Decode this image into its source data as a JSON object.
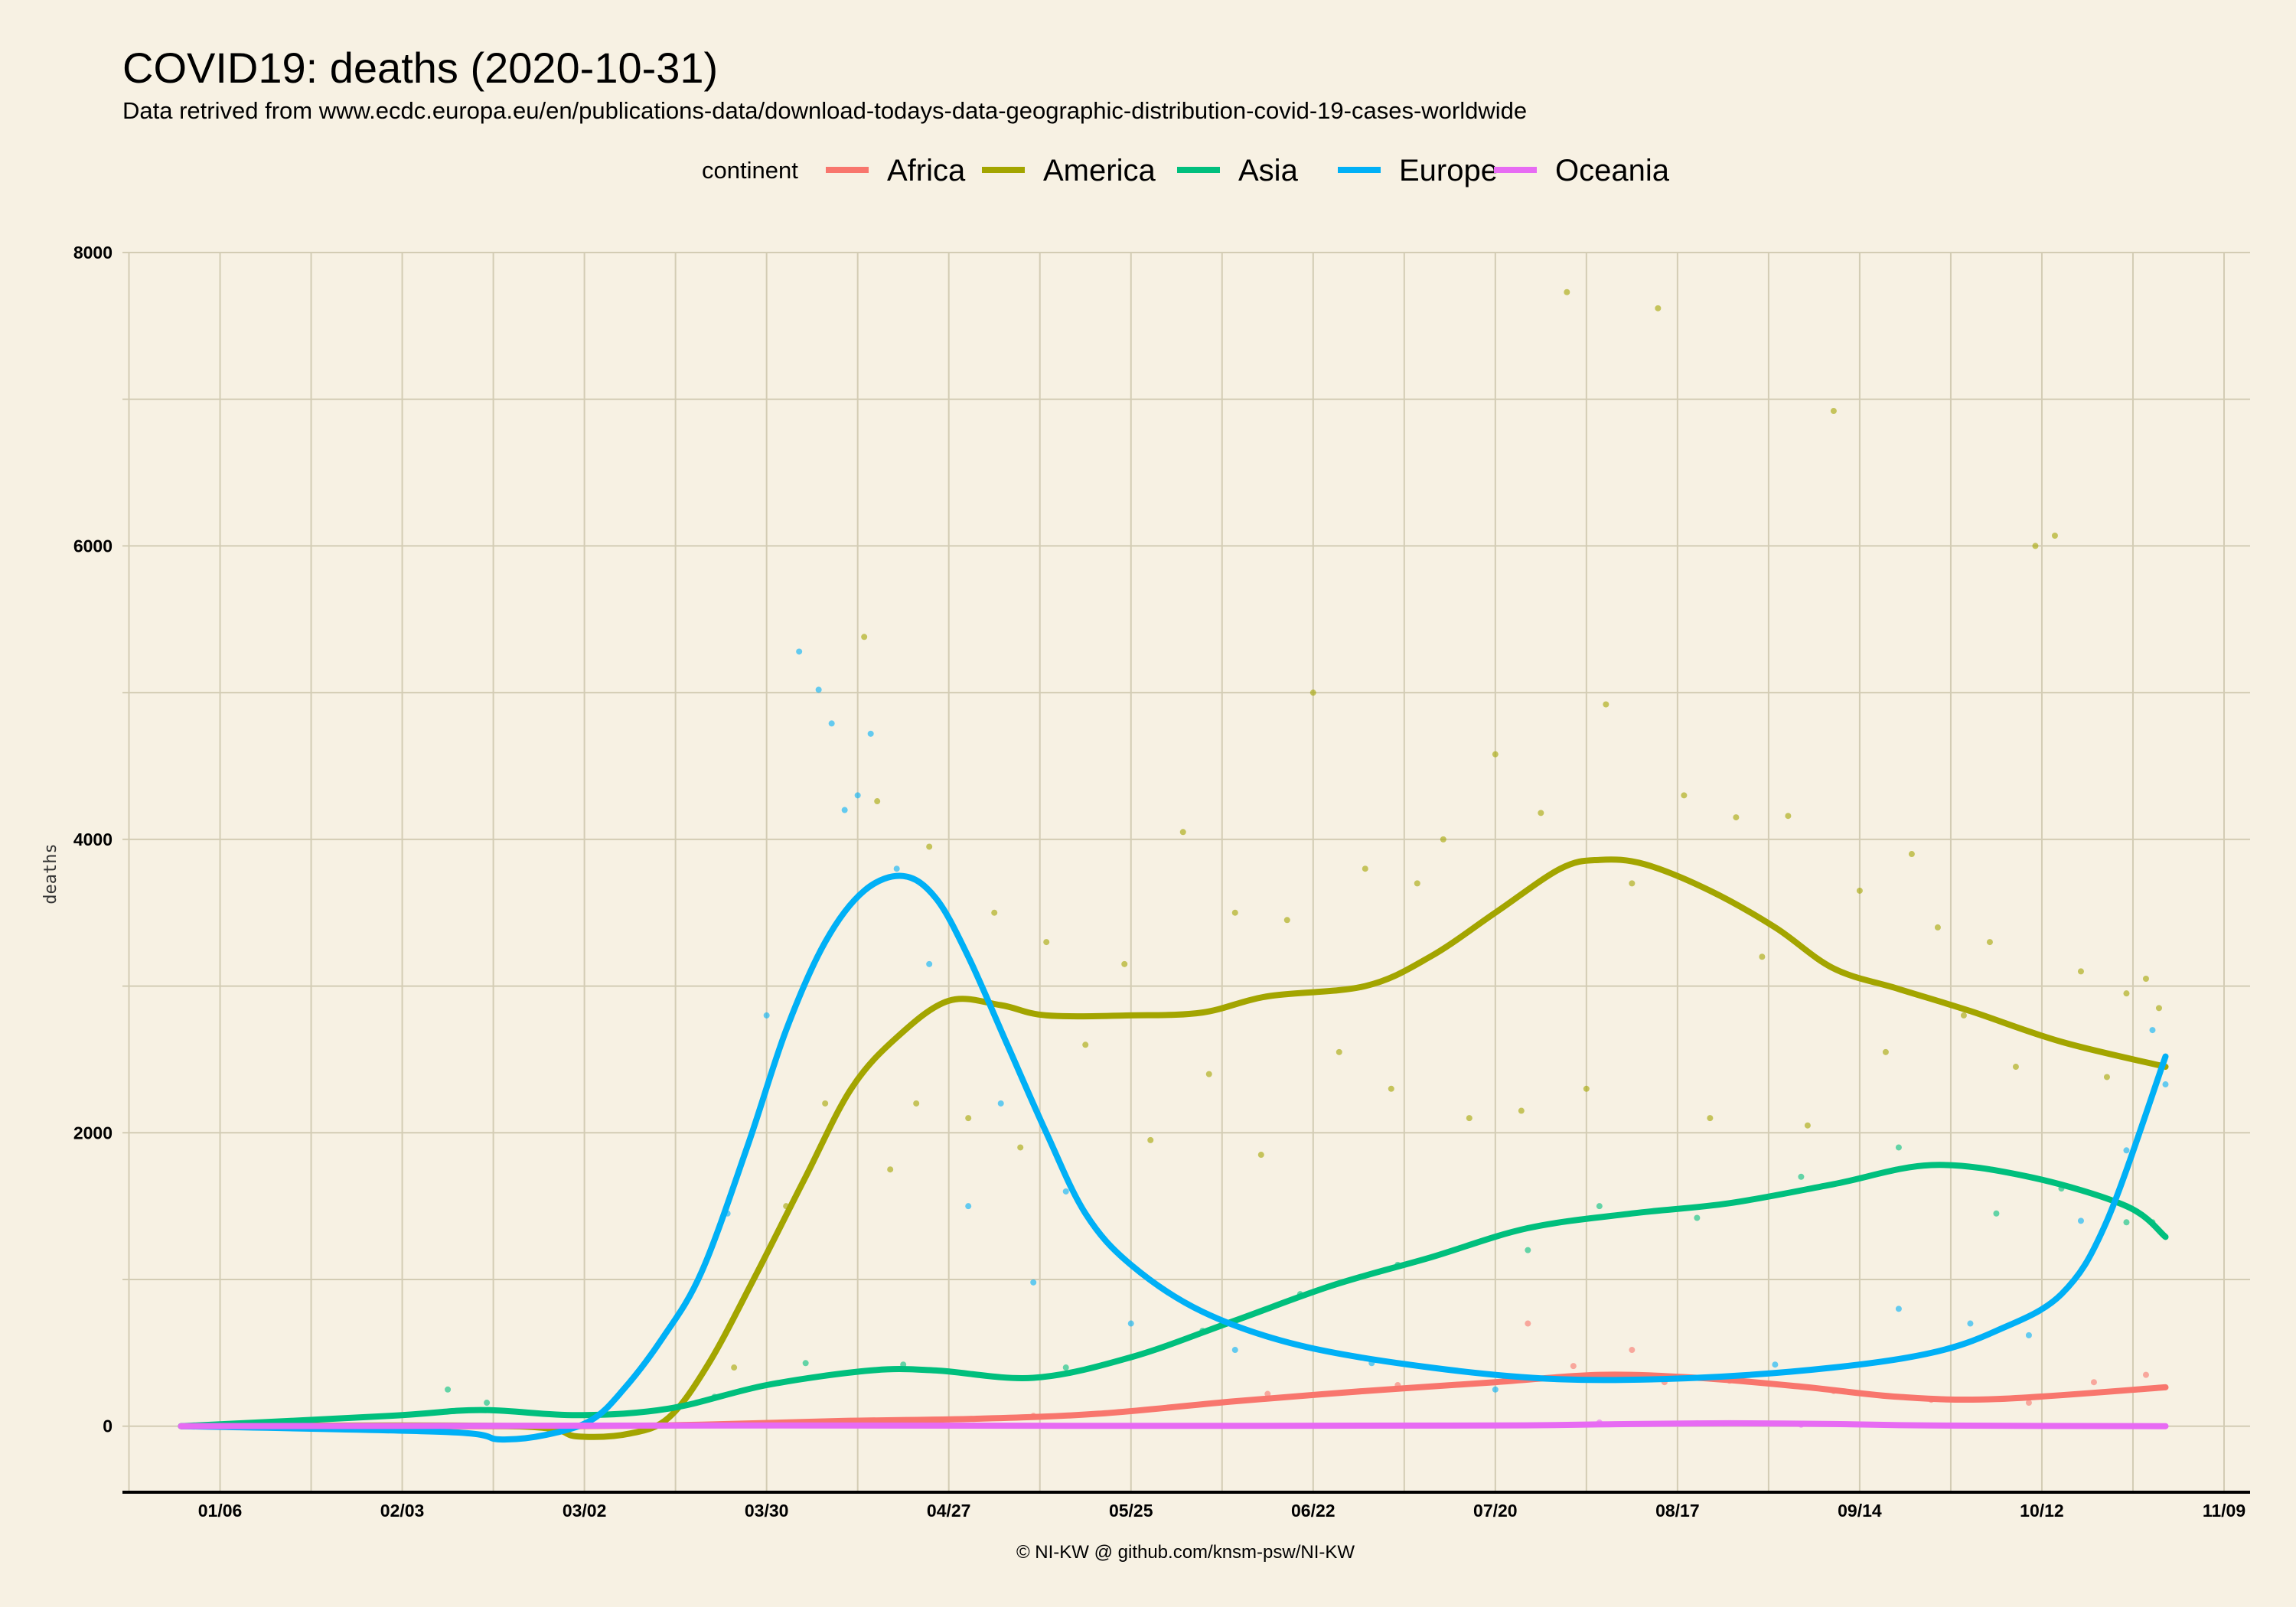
{
  "chart_data": {
    "type": "line",
    "title": "COVID19: deaths (2020-10-31)",
    "subtitle": "Data retrived from www.ecdc.europa.eu/en/publications-data/download-todays-data-geographic-distribution-covid-19-cases-worldwide",
    "caption": "© NI-KW @ github.com/knsm-psw/NI-KW",
    "ylabel": "deaths",
    "xlabel": "",
    "legend_title": "continent",
    "legend_position": "top",
    "grid": true,
    "x_type": "date",
    "x_range": [
      "2019-12-22",
      "2020-11-13"
    ],
    "ylim": [
      -450,
      8000
    ],
    "y_ticks": [
      0,
      2000,
      4000,
      6000,
      8000
    ],
    "y_tick_labels": [
      "0",
      "2000",
      "4000",
      "6000",
      "8000"
    ],
    "x_ticks": [
      "2020-01-06",
      "2020-02-03",
      "2020-03-02",
      "2020-03-30",
      "2020-04-27",
      "2020-05-25",
      "2020-06-22",
      "2020-07-20",
      "2020-08-17",
      "2020-09-14",
      "2020-10-12",
      "2020-11-09"
    ],
    "x_tick_labels": [
      "01/06",
      "02/03",
      "03/02",
      "03/30",
      "04/27",
      "05/25",
      "06/22",
      "07/20",
      "08/17",
      "09/14",
      "10/12",
      "11/09"
    ],
    "series": [
      {
        "name": "Africa",
        "color": "#f8766d",
        "smooth": [
          [
            "2019-12-31",
            0
          ],
          [
            "2020-02-01",
            0
          ],
          [
            "2020-03-01",
            0
          ],
          [
            "2020-03-20",
            10
          ],
          [
            "2020-04-10",
            35
          ],
          [
            "2020-05-01",
            50
          ],
          [
            "2020-05-20",
            85
          ],
          [
            "2020-06-10",
            170
          ],
          [
            "2020-06-30",
            240
          ],
          [
            "2020-07-20",
            300
          ],
          [
            "2020-08-05",
            350
          ],
          [
            "2020-08-20",
            330
          ],
          [
            "2020-09-05",
            270
          ],
          [
            "2020-09-20",
            200
          ],
          [
            "2020-10-05",
            185
          ],
          [
            "2020-10-31",
            265
          ]
        ],
        "points": [
          [
            "2020-04-05",
            25
          ],
          [
            "2020-05-10",
            70
          ],
          [
            "2020-06-15",
            220
          ],
          [
            "2020-07-05",
            280
          ],
          [
            "2020-07-25",
            700
          ],
          [
            "2020-08-01",
            410
          ],
          [
            "2020-08-10",
            520
          ],
          [
            "2020-08-15",
            300
          ],
          [
            "2020-08-25",
            310
          ],
          [
            "2020-09-10",
            240
          ],
          [
            "2020-09-25",
            180
          ],
          [
            "2020-10-10",
            160
          ],
          [
            "2020-10-20",
            300
          ],
          [
            "2020-10-28",
            350
          ]
        ]
      },
      {
        "name": "America",
        "color": "#a3a500",
        "smooth": [
          [
            "2019-12-31",
            0
          ],
          [
            "2020-02-20",
            0
          ],
          [
            "2020-03-01",
            -70
          ],
          [
            "2020-03-09",
            -50
          ],
          [
            "2020-03-15",
            60
          ],
          [
            "2020-03-21",
            420
          ],
          [
            "2020-03-28",
            1000
          ],
          [
            "2020-04-05",
            1700
          ],
          [
            "2020-04-12",
            2300
          ],
          [
            "2020-04-19",
            2650
          ],
          [
            "2020-04-27",
            2900
          ],
          [
            "2020-05-05",
            2870
          ],
          [
            "2020-05-12",
            2800
          ],
          [
            "2020-05-25",
            2800
          ],
          [
            "2020-06-05",
            2820
          ],
          [
            "2020-06-15",
            2930
          ],
          [
            "2020-06-30",
            3000
          ],
          [
            "2020-07-10",
            3200
          ],
          [
            "2020-07-20",
            3500
          ],
          [
            "2020-07-30",
            3800
          ],
          [
            "2020-08-05",
            3860
          ],
          [
            "2020-08-12",
            3830
          ],
          [
            "2020-08-22",
            3650
          ],
          [
            "2020-09-01",
            3400
          ],
          [
            "2020-09-10",
            3120
          ],
          [
            "2020-09-20",
            2980
          ],
          [
            "2020-10-01",
            2830
          ],
          [
            "2020-10-15",
            2620
          ],
          [
            "2020-10-31",
            2450
          ]
        ],
        "points": [
          [
            "2020-03-25",
            400
          ],
          [
            "2020-04-02",
            1500
          ],
          [
            "2020-04-08",
            2200
          ],
          [
            "2020-04-14",
            5380
          ],
          [
            "2020-04-16",
            4260
          ],
          [
            "2020-04-18",
            1750
          ],
          [
            "2020-04-22",
            2200
          ],
          [
            "2020-04-24",
            3950
          ],
          [
            "2020-04-30",
            2100
          ],
          [
            "2020-05-04",
            3500
          ],
          [
            "2020-05-08",
            1900
          ],
          [
            "2020-05-12",
            3300
          ],
          [
            "2020-05-18",
            2600
          ],
          [
            "2020-05-24",
            3150
          ],
          [
            "2020-05-28",
            1950
          ],
          [
            "2020-06-02",
            4050
          ],
          [
            "2020-06-06",
            2400
          ],
          [
            "2020-06-10",
            3500
          ],
          [
            "2020-06-14",
            1850
          ],
          [
            "2020-06-18",
            3450
          ],
          [
            "2020-06-22",
            5000
          ],
          [
            "2020-06-26",
            2550
          ],
          [
            "2020-06-30",
            3800
          ],
          [
            "2020-07-04",
            2300
          ],
          [
            "2020-07-08",
            3700
          ],
          [
            "2020-07-12",
            4000
          ],
          [
            "2020-07-16",
            2100
          ],
          [
            "2020-07-20",
            4580
          ],
          [
            "2020-07-24",
            2150
          ],
          [
            "2020-07-27",
            4180
          ],
          [
            "2020-07-31",
            7730
          ],
          [
            "2020-08-03",
            2300
          ],
          [
            "2020-08-06",
            4920
          ],
          [
            "2020-08-10",
            3700
          ],
          [
            "2020-08-14",
            7620
          ],
          [
            "2020-08-18",
            4300
          ],
          [
            "2020-08-22",
            2100
          ],
          [
            "2020-08-26",
            4150
          ],
          [
            "2020-08-30",
            3200
          ],
          [
            "2020-09-03",
            4160
          ],
          [
            "2020-09-06",
            2050
          ],
          [
            "2020-09-10",
            6920
          ],
          [
            "2020-09-14",
            3650
          ],
          [
            "2020-09-18",
            2550
          ],
          [
            "2020-09-22",
            3900
          ],
          [
            "2020-09-26",
            3400
          ],
          [
            "2020-09-30",
            2800
          ],
          [
            "2020-10-04",
            3300
          ],
          [
            "2020-10-08",
            2450
          ],
          [
            "2020-10-11",
            6000
          ],
          [
            "2020-10-14",
            6070
          ],
          [
            "2020-10-18",
            3100
          ],
          [
            "2020-10-22",
            2380
          ],
          [
            "2020-10-25",
            2950
          ],
          [
            "2020-10-28",
            3050
          ],
          [
            "2020-10-30",
            2850
          ]
        ]
      },
      {
        "name": "Asia",
        "color": "#00bf7d",
        "smooth": [
          [
            "2019-12-31",
            0
          ],
          [
            "2020-02-01",
            70
          ],
          [
            "2020-02-15",
            110
          ],
          [
            "2020-03-01",
            75
          ],
          [
            "2020-03-15",
            120
          ],
          [
            "2020-03-30",
            280
          ],
          [
            "2020-04-15",
            380
          ],
          [
            "2020-04-25",
            380
          ],
          [
            "2020-05-10",
            330
          ],
          [
            "2020-05-25",
            470
          ],
          [
            "2020-06-10",
            720
          ],
          [
            "2020-06-25",
            960
          ],
          [
            "2020-07-10",
            1150
          ],
          [
            "2020-07-25",
            1350
          ],
          [
            "2020-08-10",
            1450
          ],
          [
            "2020-08-25",
            1520
          ],
          [
            "2020-09-10",
            1650
          ],
          [
            "2020-09-25",
            1780
          ],
          [
            "2020-10-10",
            1700
          ],
          [
            "2020-10-25",
            1500
          ],
          [
            "2020-10-31",
            1290
          ]
        ],
        "points": [
          [
            "2020-02-10",
            250
          ],
          [
            "2020-02-16",
            160
          ],
          [
            "2020-03-22",
            200
          ],
          [
            "2020-04-05",
            430
          ],
          [
            "2020-04-20",
            420
          ],
          [
            "2020-05-15",
            400
          ],
          [
            "2020-06-05",
            650
          ],
          [
            "2020-06-20",
            900
          ],
          [
            "2020-07-05",
            1100
          ],
          [
            "2020-07-25",
            1200
          ],
          [
            "2020-08-05",
            1500
          ],
          [
            "2020-08-20",
            1420
          ],
          [
            "2020-09-05",
            1700
          ],
          [
            "2020-09-20",
            1900
          ],
          [
            "2020-10-05",
            1450
          ],
          [
            "2020-10-15",
            1620
          ],
          [
            "2020-10-25",
            1390
          ],
          [
            "2020-10-29",
            1390
          ]
        ]
      },
      {
        "name": "Europe",
        "color": "#00b0f6",
        "smooth": [
          [
            "2019-12-31",
            0
          ],
          [
            "2020-02-10",
            -40
          ],
          [
            "2020-02-18",
            -90
          ],
          [
            "2020-02-25",
            -60
          ],
          [
            "2020-03-03",
            40
          ],
          [
            "2020-03-08",
            250
          ],
          [
            "2020-03-14",
            600
          ],
          [
            "2020-03-20",
            1050
          ],
          [
            "2020-03-27",
            1900
          ],
          [
            "2020-04-02",
            2700
          ],
          [
            "2020-04-08",
            3300
          ],
          [
            "2020-04-14",
            3650
          ],
          [
            "2020-04-20",
            3750
          ],
          [
            "2020-04-25",
            3600
          ],
          [
            "2020-04-30",
            3200
          ],
          [
            "2020-05-06",
            2600
          ],
          [
            "2020-05-12",
            2000
          ],
          [
            "2020-05-18",
            1450
          ],
          [
            "2020-05-25",
            1100
          ],
          [
            "2020-06-05",
            780
          ],
          [
            "2020-06-20",
            550
          ],
          [
            "2020-07-10",
            400
          ],
          [
            "2020-07-30",
            320
          ],
          [
            "2020-08-20",
            330
          ],
          [
            "2020-09-10",
            400
          ],
          [
            "2020-09-25",
            500
          ],
          [
            "2020-10-05",
            650
          ],
          [
            "2020-10-15",
            900
          ],
          [
            "2020-10-22",
            1400
          ],
          [
            "2020-10-31",
            2520
          ]
        ],
        "points": [
          [
            "2020-03-24",
            1450
          ],
          [
            "2020-03-30",
            2800
          ],
          [
            "2020-04-04",
            5280
          ],
          [
            "2020-04-07",
            5020
          ],
          [
            "2020-04-09",
            4790
          ],
          [
            "2020-04-11",
            4200
          ],
          [
            "2020-04-13",
            4300
          ],
          [
            "2020-04-15",
            4720
          ],
          [
            "2020-04-19",
            3800
          ],
          [
            "2020-04-24",
            3150
          ],
          [
            "2020-04-30",
            1500
          ],
          [
            "2020-05-05",
            2200
          ],
          [
            "2020-05-10",
            980
          ],
          [
            "2020-05-15",
            1600
          ],
          [
            "2020-05-25",
            700
          ],
          [
            "2020-06-10",
            520
          ],
          [
            "2020-07-01",
            430
          ],
          [
            "2020-07-20",
            250
          ],
          [
            "2020-08-10",
            330
          ],
          [
            "2020-09-01",
            420
          ],
          [
            "2020-09-20",
            800
          ],
          [
            "2020-10-01",
            700
          ],
          [
            "2020-10-10",
            620
          ],
          [
            "2020-10-18",
            1400
          ],
          [
            "2020-10-25",
            1880
          ],
          [
            "2020-10-29",
            2700
          ],
          [
            "2020-10-31",
            2330
          ]
        ]
      },
      {
        "name": "Oceania",
        "color": "#e76bf3",
        "smooth": [
          [
            "2019-12-31",
            0
          ],
          [
            "2020-04-01",
            5
          ],
          [
            "2020-06-01",
            2
          ],
          [
            "2020-07-20",
            5
          ],
          [
            "2020-08-10",
            15
          ],
          [
            "2020-08-25",
            20
          ],
          [
            "2020-09-10",
            15
          ],
          [
            "2020-09-25",
            5
          ],
          [
            "2020-10-31",
            0
          ]
        ],
        "points": [
          [
            "2020-08-05",
            25
          ],
          [
            "2020-08-20",
            20
          ],
          [
            "2020-09-05",
            10
          ]
        ]
      }
    ]
  }
}
